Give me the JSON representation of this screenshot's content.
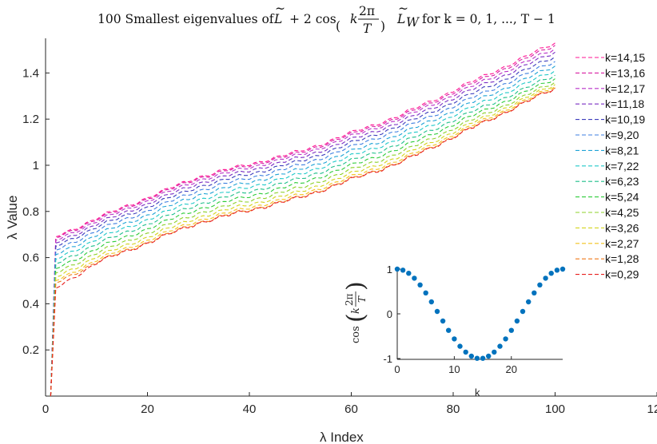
{
  "chart_data": [
    {
      "type": "line",
      "title": "100 Smallest eigenvalues of L̃ + 2 cos(k 2π/T) L̃_W for k = 0,1,...,T − 1",
      "title_parts": {
        "prefix": "100 Smallest eigenvalues of ",
        "L": "L",
        "plus_two": "+ 2 cos",
        "k": "k",
        "num": "2π",
        "den": "T",
        "LW": "L",
        "LW_sub": "W",
        "suffix": "for k = 0, 1, ..., T − 1"
      },
      "xlabel": "λ Index",
      "ylabel": "λ Value",
      "xlim": [
        0,
        120
      ],
      "ylim": [
        0,
        1.55
      ],
      "xticks": [
        "0",
        "20",
        "40",
        "60",
        "80",
        "100",
        "120"
      ],
      "yticks": [
        "0.2",
        "0.4",
        "0.6",
        "0.8",
        "1",
        "1.2",
        "1.4"
      ],
      "line_style": "dashed",
      "legend_position": "right",
      "x_start": 1,
      "x_end": 100,
      "series": [
        {
          "name": "k=14,15",
          "color": "#ff1493",
          "first": 0.0,
          "second": 0.69,
          "at10": 0.77,
          "at30": 0.95,
          "at50": 1.06,
          "at70": 1.22,
          "at100": 1.53
        },
        {
          "name": "k=13,16",
          "color": "#d81fa2",
          "first": 0.0,
          "second": 0.685,
          "at10": 0.765,
          "at30": 0.945,
          "at50": 1.054,
          "at70": 1.213,
          "at100": 1.52
        },
        {
          "name": "k=12,17",
          "color": "#b930c8",
          "first": 0.0,
          "second": 0.675,
          "at10": 0.757,
          "at30": 0.936,
          "at50": 1.045,
          "at70": 1.204,
          "at100": 1.505
        },
        {
          "name": "k=11,18",
          "color": "#7a2fc4",
          "first": 0.0,
          "second": 0.663,
          "at10": 0.745,
          "at30": 0.923,
          "at50": 1.032,
          "at70": 1.19,
          "at100": 1.49
        },
        {
          "name": "k=10,19",
          "color": "#3d3dbd",
          "first": 0.0,
          "second": 0.649,
          "at10": 0.732,
          "at30": 0.908,
          "at50": 1.017,
          "at70": 1.175,
          "at100": 1.47
        },
        {
          "name": "k=9,20",
          "color": "#3d7fe0",
          "first": 0.0,
          "second": 0.632,
          "at10": 0.716,
          "at30": 0.891,
          "at50": 1.0,
          "at70": 1.158,
          "at100": 1.45
        },
        {
          "name": "k=8,21",
          "color": "#1ea3d6",
          "first": 0.0,
          "second": 0.613,
          "at10": 0.698,
          "at30": 0.872,
          "at50": 0.981,
          "at70": 1.138,
          "at100": 1.43
        },
        {
          "name": "k=7,22",
          "color": "#20c9c9",
          "first": 0.0,
          "second": 0.593,
          "at10": 0.679,
          "at30": 0.852,
          "at50": 0.961,
          "at70": 1.118,
          "at100": 1.41
        },
        {
          "name": "k=6,23",
          "color": "#1fbf8a",
          "first": 0.0,
          "second": 0.573,
          "at10": 0.659,
          "at30": 0.832,
          "at50": 0.941,
          "at70": 1.097,
          "at100": 1.39
        },
        {
          "name": "k=5,24",
          "color": "#2ecc3a",
          "first": 0.0,
          "second": 0.552,
          "at10": 0.639,
          "at30": 0.812,
          "at50": 0.921,
          "at70": 1.077,
          "at100": 1.375
        },
        {
          "name": "k=4,25",
          "color": "#8ed12a",
          "first": 0.0,
          "second": 0.533,
          "at10": 0.62,
          "at30": 0.793,
          "at50": 0.902,
          "at70": 1.058,
          "at100": 1.36
        },
        {
          "name": "k=3,26",
          "color": "#d3d41e",
          "first": 0.0,
          "second": 0.515,
          "at10": 0.603,
          "at30": 0.776,
          "at50": 0.885,
          "at70": 1.041,
          "at100": 1.35
        },
        {
          "name": "k=2,27",
          "color": "#f2c21d",
          "first": 0.0,
          "second": 0.5,
          "at10": 0.589,
          "at30": 0.762,
          "at50": 0.871,
          "at70": 1.027,
          "at100": 1.342
        },
        {
          "name": "k=1,28",
          "color": "#f07a1a",
          "first": 0.0,
          "second": 0.49,
          "at10": 0.58,
          "at30": 0.753,
          "at50": 0.862,
          "at70": 1.018,
          "at100": 1.336
        },
        {
          "name": "k=0,29",
          "color": "#e8201f",
          "first": 0.0,
          "second": 0.467,
          "at10": 0.577,
          "at30": 0.75,
          "at50": 0.859,
          "at70": 1.015,
          "at100": 1.333
        }
      ]
    },
    {
      "type": "scatter",
      "title": "",
      "xlabel": "k",
      "ylabel": "cos(k 2π/T)",
      "ylabel_parts": {
        "cos": "cos",
        "k": "k",
        "num": "2π",
        "den": "T"
      },
      "xlim": [
        0,
        29
      ],
      "ylim": [
        -1,
        1
      ],
      "xticks": [
        "0",
        "10",
        "20"
      ],
      "yticks": [
        "-1",
        "0",
        "1"
      ],
      "color": "#0072bd",
      "x": [
        0,
        1,
        2,
        3,
        4,
        5,
        6,
        7,
        8,
        9,
        10,
        11,
        12,
        13,
        14,
        15,
        16,
        17,
        18,
        19,
        20,
        21,
        22,
        23,
        24,
        25,
        26,
        27,
        28,
        29
      ],
      "y": [
        1.0,
        0.977,
        0.907,
        0.796,
        0.647,
        0.468,
        0.267,
        0.054,
        -0.161,
        -0.37,
        -0.561,
        -0.725,
        -0.856,
        -0.946,
        -0.994,
        -0.994,
        -0.946,
        -0.856,
        -0.725,
        -0.561,
        -0.37,
        -0.161,
        0.054,
        0.267,
        0.468,
        0.647,
        0.796,
        0.907,
        0.977,
        1.0
      ]
    }
  ]
}
